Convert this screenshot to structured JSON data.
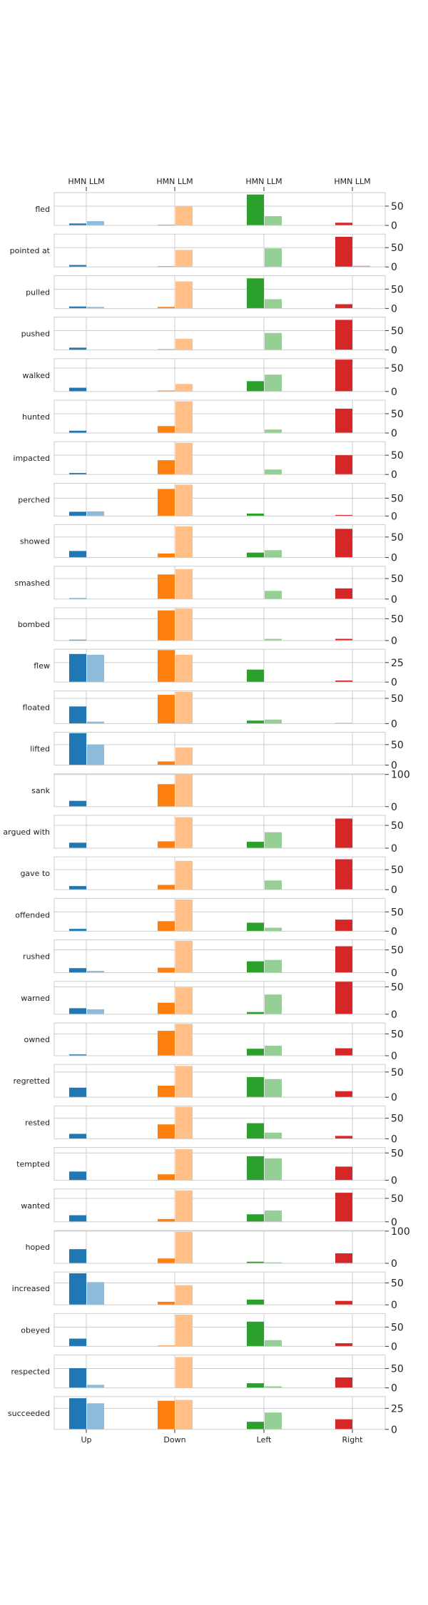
{
  "chart_data": {
    "type": "bar",
    "directions": [
      "Up",
      "Down",
      "Left",
      "Right"
    ],
    "series_labels": [
      "HMN",
      "LLM"
    ],
    "colors": {
      "Up": [
        "#1f77b4",
        "#8fbbda"
      ],
      "Down": [
        "#ff7f0e",
        "#ffbf86"
      ],
      "Left": [
        "#2ca02c",
        "#95cf95"
      ],
      "Right": [
        "#d62728",
        "#ea9393"
      ]
    },
    "grid": true,
    "panels": [
      {
        "verb": "fled",
        "hmn": [
          5,
          2,
          80,
          7
        ],
        "llm": [
          11,
          50,
          24,
          1
        ],
        "ylim": [
          0,
          85
        ],
        "yticks": [
          0,
          50
        ]
      },
      {
        "verb": "pointed at",
        "hmn": [
          5,
          2,
          0,
          78
        ],
        "llm": [
          0,
          44,
          48,
          3
        ],
        "ylim": [
          0,
          85
        ],
        "yticks": [
          0,
          50
        ]
      },
      {
        "verb": "pulled",
        "hmn": [
          5,
          4,
          78,
          11
        ],
        "llm": [
          4,
          70,
          24,
          1
        ],
        "ylim": [
          0,
          85
        ],
        "yticks": [
          0,
          50
        ]
      },
      {
        "verb": "pushed",
        "hmn": [
          6,
          2,
          0,
          78
        ],
        "llm": [
          0,
          29,
          44,
          0
        ],
        "ylim": [
          0,
          85
        ],
        "yticks": [
          0,
          50
        ]
      },
      {
        "verb": "walked",
        "hmn": [
          8,
          2,
          22,
          68
        ],
        "llm": [
          0,
          16,
          36,
          0
        ],
        "ylim": [
          0,
          70
        ],
        "yticks": [
          0,
          50
        ]
      },
      {
        "verb": "hunted",
        "hmn": [
          6,
          18,
          0,
          63
        ],
        "llm": [
          0,
          82,
          9,
          0
        ],
        "ylim": [
          0,
          85
        ],
        "yticks": [
          0,
          50
        ]
      },
      {
        "verb": "impacted",
        "hmn": [
          4,
          37,
          0,
          50
        ],
        "llm": [
          0,
          82,
          13,
          0
        ],
        "ylim": [
          0,
          85
        ],
        "yticks": [
          0,
          50
        ]
      },
      {
        "verb": "perched",
        "hmn": [
          12,
          76,
          7,
          3
        ],
        "llm": [
          13,
          88,
          0,
          0
        ],
        "ylim": [
          0,
          92
        ],
        "yticks": [
          0,
          50
        ]
      },
      {
        "verb": "showed",
        "hmn": [
          16,
          10,
          12,
          70
        ],
        "llm": [
          0,
          76,
          18,
          0
        ],
        "ylim": [
          0,
          80
        ],
        "yticks": [
          0,
          50
        ]
      },
      {
        "verb": "smashed",
        "hmn": [
          2,
          60,
          0,
          26
        ],
        "llm": [
          0,
          73,
          20,
          0
        ],
        "ylim": [
          0,
          80
        ],
        "yticks": [
          0,
          50
        ]
      },
      {
        "verb": "bombed",
        "hmn": [
          2,
          69,
          0,
          4
        ],
        "llm": [
          0,
          73,
          4,
          0
        ],
        "ylim": [
          0,
          75
        ],
        "yticks": [
          0,
          50
        ]
      },
      {
        "verb": "flew",
        "hmn": [
          36,
          41,
          16,
          2
        ],
        "llm": [
          35,
          35,
          0,
          0
        ],
        "ylim": [
          0,
          42
        ],
        "yticks": [
          0,
          25
        ]
      },
      {
        "verb": "floated",
        "hmn": [
          34,
          57,
          6,
          1
        ],
        "llm": [
          4,
          63,
          8,
          0
        ],
        "ylim": [
          0,
          65
        ],
        "yticks": [
          0,
          50
        ]
      },
      {
        "verb": "lifted",
        "hmn": [
          78,
          9,
          0,
          0
        ],
        "llm": [
          50,
          43,
          0,
          0
        ],
        "ylim": [
          0,
          80
        ],
        "yticks": [
          0,
          50
        ]
      },
      {
        "verb": "sank",
        "hmn": [
          18,
          70,
          0,
          0
        ],
        "llm": [
          0,
          100,
          0,
          0
        ],
        "ylim": [
          0,
          102
        ],
        "yticks": [
          0,
          100
        ]
      },
      {
        "verb": "argued with",
        "hmn": [
          12,
          15,
          14,
          65
        ],
        "llm": [
          0,
          68,
          35,
          0
        ],
        "ylim": [
          0,
          72
        ],
        "yticks": [
          0,
          50
        ]
      },
      {
        "verb": "gave to",
        "hmn": [
          9,
          12,
          0,
          76
        ],
        "llm": [
          0,
          72,
          23,
          0
        ],
        "ylim": [
          0,
          82
        ],
        "yticks": [
          0,
          50
        ]
      },
      {
        "verb": "offended",
        "hmn": [
          6,
          26,
          22,
          30
        ],
        "llm": [
          0,
          82,
          9,
          0
        ],
        "ylim": [
          0,
          85
        ],
        "yticks": [
          0,
          50
        ]
      },
      {
        "verb": "rushed",
        "hmn": [
          10,
          11,
          25,
          58
        ],
        "llm": [
          4,
          70,
          28,
          0
        ],
        "ylim": [
          0,
          72
        ],
        "yticks": [
          0,
          50
        ]
      },
      {
        "verb": "warned",
        "hmn": [
          11,
          21,
          4,
          60
        ],
        "llm": [
          9,
          49,
          36,
          0
        ],
        "ylim": [
          0,
          60
        ],
        "yticks": [
          0,
          50
        ]
      },
      {
        "verb": "owned",
        "hmn": [
          3,
          57,
          16,
          17
        ],
        "llm": [
          0,
          73,
          23,
          0
        ],
        "ylim": [
          0,
          75
        ],
        "yticks": [
          0,
          50
        ]
      },
      {
        "verb": "regretted",
        "hmn": [
          19,
          23,
          40,
          12
        ],
        "llm": [
          0,
          62,
          36,
          0
        ],
        "ylim": [
          0,
          65
        ],
        "yticks": [
          0,
          50
        ]
      },
      {
        "verb": "rested",
        "hmn": [
          12,
          35,
          38,
          7
        ],
        "llm": [
          0,
          78,
          15,
          0
        ],
        "ylim": [
          0,
          80
        ],
        "yticks": [
          0,
          50
        ]
      },
      {
        "verb": "tempted",
        "hmn": [
          16,
          11,
          44,
          25
        ],
        "llm": [
          0,
          57,
          40,
          0
        ],
        "ylim": [
          0,
          60
        ],
        "yticks": [
          0,
          50
        ]
      },
      {
        "verb": "wanted",
        "hmn": [
          14,
          6,
          16,
          62
        ],
        "llm": [
          0,
          67,
          24,
          0
        ],
        "ylim": [
          0,
          70
        ],
        "yticks": [
          0,
          50
        ]
      },
      {
        "verb": "hoped",
        "hmn": [
          44,
          15,
          5,
          31
        ],
        "llm": [
          0,
          98,
          3,
          0
        ],
        "ylim": [
          0,
          102
        ],
        "yticks": [
          0,
          100
        ]
      },
      {
        "verb": "increased",
        "hmn": [
          72,
          7,
          12,
          9
        ],
        "llm": [
          52,
          45,
          0,
          0
        ],
        "ylim": [
          0,
          75
        ],
        "yticks": [
          0,
          50
        ]
      },
      {
        "verb": "obeyed",
        "hmn": [
          20,
          2,
          64,
          8
        ],
        "llm": [
          0,
          82,
          16,
          0
        ],
        "ylim": [
          0,
          85
        ],
        "yticks": [
          0,
          50
        ]
      },
      {
        "verb": "respected",
        "hmn": [
          51,
          0,
          12,
          27
        ],
        "llm": [
          8,
          80,
          4,
          0
        ],
        "ylim": [
          0,
          85
        ],
        "yticks": [
          0,
          50
        ]
      },
      {
        "verb": "succeeded",
        "hmn": [
          37,
          34,
          9,
          12
        ],
        "llm": [
          31,
          35,
          20,
          0
        ],
        "ylim": [
          0,
          39
        ],
        "yticks": [
          0,
          25
        ]
      }
    ]
  }
}
